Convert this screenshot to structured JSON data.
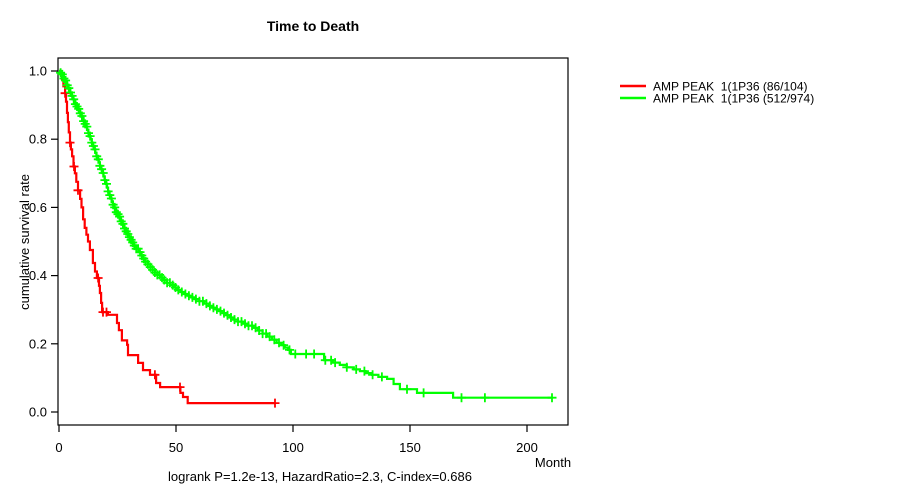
{
  "title": "Time to Death",
  "caption": "logrank P=1.2e-13, HazardRatio=2.3, C-index=0.686",
  "axes": {
    "x_label": "Month",
    "y_label": "cumulative survival rate",
    "x_ticks": [
      "0",
      "50",
      "100",
      "150",
      "200"
    ],
    "y_ticks": [
      "1.0",
      "0.8",
      "0.6",
      "0.4",
      "0.2",
      "0.0"
    ]
  },
  "legend": {
    "position": "top-right-outside",
    "entries": [
      {
        "label": "AMP PEAK  1(1P36 (86/104)",
        "color": "#FF0000"
      },
      {
        "label": "AMP PEAK  1(1P36 (512/974)",
        "color": "#00FF00"
      }
    ]
  },
  "chart_data": {
    "type": "line",
    "subtype": "kaplan-meier-step",
    "title": "Time to Death",
    "xlabel": "Month",
    "ylabel": "cumulative survival rate",
    "xlim": [
      0,
      218
    ],
    "ylim": [
      0,
      1.0
    ],
    "grid": false,
    "series": [
      {
        "name": "AMP PEAK  1(1P36 (86/104)",
        "color": "#FF0000",
        "points": [
          [
            0,
            1.0
          ],
          [
            0.7,
            0.99
          ],
          [
            1.3,
            0.975
          ],
          [
            1.9,
            0.955
          ],
          [
            2.6,
            0.935
          ],
          [
            3.0,
            0.91
          ],
          [
            3.4,
            0.877
          ],
          [
            3.8,
            0.85
          ],
          [
            4.2,
            0.82
          ],
          [
            4.7,
            0.79
          ],
          [
            5.1,
            0.77
          ],
          [
            5.6,
            0.75
          ],
          [
            6.2,
            0.72
          ],
          [
            6.8,
            0.7
          ],
          [
            7.4,
            0.675
          ],
          [
            8.1,
            0.65
          ],
          [
            9.0,
            0.625
          ],
          [
            9.6,
            0.6
          ],
          [
            10.3,
            0.565
          ],
          [
            11.0,
            0.54
          ],
          [
            11.7,
            0.52
          ],
          [
            12.4,
            0.5
          ],
          [
            13.2,
            0.475
          ],
          [
            14.5,
            0.437
          ],
          [
            15.4,
            0.412
          ],
          [
            16.2,
            0.393
          ],
          [
            17.1,
            0.37
          ],
          [
            17.5,
            0.349
          ],
          [
            18.0,
            0.32
          ],
          [
            18.4,
            0.293
          ],
          [
            20.9,
            0.285
          ],
          [
            24.8,
            0.261
          ],
          [
            25.6,
            0.24
          ],
          [
            26.9,
            0.21
          ],
          [
            29.1,
            0.197
          ],
          [
            29.5,
            0.167
          ],
          [
            33.8,
            0.144
          ],
          [
            35.9,
            0.123
          ],
          [
            38.9,
            0.109
          ],
          [
            41.5,
            0.085
          ],
          [
            43.2,
            0.073
          ],
          [
            51.9,
            0.056
          ],
          [
            53.0,
            0.044
          ],
          [
            55.0,
            0.026
          ],
          [
            92.3,
            0.026
          ]
        ],
        "censor_months": [
          2.6,
          4.7,
          6.4,
          8.1,
          16.7,
          18.8,
          20.3,
          41.0,
          51.7,
          92.3
        ]
      },
      {
        "name": "AMP PEAK  1(1P36 (512/974)",
        "color": "#00FF00",
        "points": [
          [
            0,
            1.0
          ],
          [
            0.5,
            0.995
          ],
          [
            1,
            0.99
          ],
          [
            1.5,
            0.985
          ],
          [
            2,
            0.978
          ],
          [
            2.5,
            0.972
          ],
          [
            3,
            0.965
          ],
          [
            3.5,
            0.958
          ],
          [
            4,
            0.95
          ],
          [
            4.7,
            0.937
          ],
          [
            5.5,
            0.927
          ],
          [
            6,
            0.917
          ],
          [
            6.5,
            0.91
          ],
          [
            7,
            0.903
          ],
          [
            7.5,
            0.896
          ],
          [
            8,
            0.889
          ],
          [
            8.5,
            0.882
          ],
          [
            9,
            0.876
          ],
          [
            9.5,
            0.868
          ],
          [
            10,
            0.861
          ],
          [
            10.5,
            0.853
          ],
          [
            11,
            0.845
          ],
          [
            11.5,
            0.837
          ],
          [
            12,
            0.828
          ],
          [
            12.5,
            0.818
          ],
          [
            13,
            0.809
          ],
          [
            13.5,
            0.8
          ],
          [
            14,
            0.79
          ],
          [
            14.5,
            0.78
          ],
          [
            15,
            0.77
          ],
          [
            15.5,
            0.76
          ],
          [
            16,
            0.75
          ],
          [
            16.5,
            0.741
          ],
          [
            17,
            0.732
          ],
          [
            17.5,
            0.722
          ],
          [
            18,
            0.712
          ],
          [
            18.5,
            0.701
          ],
          [
            19,
            0.691
          ],
          [
            19.5,
            0.68
          ],
          [
            20,
            0.669
          ],
          [
            20.5,
            0.658
          ],
          [
            21,
            0.647
          ],
          [
            21.5,
            0.636
          ],
          [
            22,
            0.626
          ],
          [
            22.5,
            0.617
          ],
          [
            23,
            0.608
          ],
          [
            23.5,
            0.6
          ],
          [
            24,
            0.592
          ],
          [
            24.5,
            0.586
          ],
          [
            25,
            0.58
          ],
          [
            25.5,
            0.573
          ],
          [
            26,
            0.566
          ],
          [
            26.5,
            0.559
          ],
          [
            27,
            0.552
          ],
          [
            27.5,
            0.545
          ],
          [
            28,
            0.538
          ],
          [
            28.7,
            0.53
          ],
          [
            29.4,
            0.522
          ],
          [
            30.1,
            0.513
          ],
          [
            30.8,
            0.505
          ],
          [
            31.5,
            0.497
          ],
          [
            32.2,
            0.488
          ],
          [
            33,
            0.479
          ],
          [
            34,
            0.469
          ],
          [
            35,
            0.459
          ],
          [
            36,
            0.45
          ],
          [
            37,
            0.441
          ],
          [
            38,
            0.433
          ],
          [
            39,
            0.425
          ],
          [
            40,
            0.417
          ],
          [
            41,
            0.409
          ],
          [
            42,
            0.402
          ],
          [
            43.5,
            0.394
          ],
          [
            44.6,
            0.387
          ],
          [
            46,
            0.379
          ],
          [
            47.5,
            0.372
          ],
          [
            49,
            0.365
          ],
          [
            50.5,
            0.358
          ],
          [
            52,
            0.352
          ],
          [
            53.5,
            0.346
          ],
          [
            55,
            0.341
          ],
          [
            56.5,
            0.336
          ],
          [
            58,
            0.331
          ],
          [
            60,
            0.325
          ],
          [
            62,
            0.318
          ],
          [
            64,
            0.311
          ],
          [
            65.5,
            0.306
          ],
          [
            67,
            0.301
          ],
          [
            68.5,
            0.296
          ],
          [
            70,
            0.29
          ],
          [
            71.5,
            0.284
          ],
          [
            73,
            0.277
          ],
          [
            74.5,
            0.271
          ],
          [
            76.5,
            0.265
          ],
          [
            78.5,
            0.259
          ],
          [
            80.5,
            0.253
          ],
          [
            83,
            0.247
          ],
          [
            85,
            0.239
          ],
          [
            87,
            0.23
          ],
          [
            89,
            0.221
          ],
          [
            91,
            0.212
          ],
          [
            93,
            0.203
          ],
          [
            95,
            0.196
          ],
          [
            96.5,
            0.189
          ],
          [
            97.9,
            0.182
          ],
          [
            99.1,
            0.17
          ],
          [
            113.3,
            0.152
          ],
          [
            117,
            0.145
          ],
          [
            120,
            0.138
          ],
          [
            123,
            0.131
          ],
          [
            126,
            0.125
          ],
          [
            128.6,
            0.12
          ],
          [
            131,
            0.114
          ],
          [
            133.8,
            0.109
          ],
          [
            136.5,
            0.103
          ],
          [
            140.2,
            0.097
          ],
          [
            143,
            0.082
          ],
          [
            145.7,
            0.067
          ],
          [
            153,
            0.056
          ],
          [
            168.4,
            0.042
          ],
          [
            210.7,
            0.042
          ]
        ],
        "censor_months": [
          0.7,
          1.4,
          2.1,
          2.8,
          3.5,
          4.2,
          4.9,
          5.6,
          6.3,
          7,
          7.7,
          8.4,
          9.1,
          9.8,
          10.5,
          11.2,
          11.9,
          12.6,
          13.3,
          14,
          14.7,
          15.4,
          16.1,
          16.8,
          17.5,
          18.2,
          18.9,
          19.6,
          20.3,
          21,
          21.7,
          22.4,
          23.1,
          23.8,
          24.5,
          25.2,
          25.9,
          26.6,
          27.3,
          28,
          28.7,
          29.4,
          30.1,
          30.8,
          31.5,
          32.2,
          33,
          33.8,
          34.6,
          35.4,
          36.2,
          37,
          38,
          39,
          40,
          41,
          42,
          43,
          44,
          45,
          46.2,
          47.4,
          48.6,
          49.8,
          51,
          52.5,
          54,
          55.5,
          57,
          58.5,
          60,
          61.5,
          63,
          64.5,
          66,
          67.5,
          69,
          70.5,
          72,
          73.5,
          75,
          76.5,
          78,
          79.5,
          81,
          82.5,
          84,
          85.5,
          87,
          88.5,
          90,
          92,
          94,
          96,
          98.5,
          101,
          105.6,
          109,
          113.8,
          116.3,
          118,
          123,
          127,
          130.5,
          134,
          138,
          148.7,
          155.8,
          172,
          182,
          210.7
        ]
      }
    ]
  }
}
